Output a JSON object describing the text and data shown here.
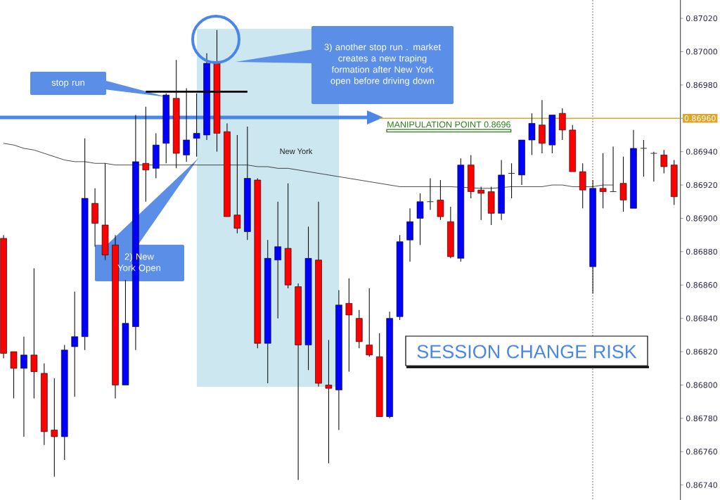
{
  "chart_data": {
    "type": "candlestick",
    "categories": [
      null,
      null,
      null,
      null,
      null,
      null,
      null,
      null,
      null,
      null,
      null,
      null,
      null,
      null,
      null,
      null,
      null,
      null,
      null,
      null,
      null,
      null,
      null,
      null,
      null,
      null,
      null,
      null,
      null,
      null,
      null,
      null,
      null,
      null,
      null,
      null,
      null,
      null,
      null,
      null,
      null,
      null,
      null,
      null,
      null,
      null,
      null,
      null,
      null,
      null,
      null,
      null,
      null,
      null,
      null,
      null,
      null,
      null,
      null,
      null,
      null,
      null,
      null,
      null,
      null,
      null,
      null
    ],
    "ohlc": [
      [
        0.86888,
        0.8689,
        0.86816,
        0.86819
      ],
      [
        0.8682,
        0.8682,
        0.86792,
        0.8681
      ],
      [
        0.8681,
        0.86829,
        0.86769,
        0.86818
      ],
      [
        0.86818,
        0.8687,
        0.86792,
        0.86808
      ],
      [
        0.86807,
        0.86813,
        0.86764,
        0.86772
      ],
      [
        0.86773,
        0.86804,
        0.86745,
        0.86769
      ],
      [
        0.86769,
        0.86824,
        0.86755,
        0.86821
      ],
      [
        0.86823,
        0.86856,
        0.86793,
        0.86829
      ],
      [
        0.86829,
        0.86948,
        0.86821,
        0.86912
      ],
      [
        0.86909,
        0.86918,
        0.86883,
        0.86897
      ],
      [
        0.86896,
        0.86933,
        0.86875,
        0.86878
      ],
      [
        0.86884,
        0.8689,
        0.86792,
        0.868
      ],
      [
        0.868,
        0.86863,
        0.868,
        0.86837
      ],
      [
        0.86835,
        0.86962,
        0.86821,
        0.86934
      ],
      [
        0.86933,
        0.86967,
        0.8691,
        0.86929
      ],
      [
        0.8693,
        0.86951,
        0.86924,
        0.86944
      ],
      [
        0.86945,
        0.86975,
        0.86933,
        0.86974
      ],
      [
        0.86972,
        0.86995,
        0.8693,
        0.86939
      ],
      [
        0.86938,
        0.86978,
        0.86934,
        0.86947
      ],
      [
        0.86948,
        0.86975,
        0.86937,
        0.86951
      ],
      [
        0.8695,
        0.86999,
        0.86947,
        0.86993
      ],
      [
        0.86993,
        0.87013,
        0.8694,
        0.86951
      ],
      [
        0.86952,
        0.86957,
        0.86901,
        0.86901
      ],
      [
        0.86902,
        0.8695,
        0.86891,
        0.86894
      ],
      [
        0.86892,
        0.86955,
        0.86887,
        0.86924
      ],
      [
        0.86923,
        0.86924,
        0.86822,
        0.86825
      ],
      [
        0.86825,
        0.86887,
        0.86801,
        0.86876
      ],
      [
        0.86875,
        0.8691,
        0.8684,
        0.86883
      ],
      [
        0.86882,
        0.86921,
        0.86858,
        0.8686
      ],
      [
        0.86859,
        0.86861,
        0.86743,
        0.86824
      ],
      [
        0.86824,
        0.86895,
        0.86809,
        0.86876
      ],
      [
        0.86875,
        0.8691,
        0.86799,
        0.86801
      ],
      [
        0.868,
        0.86827,
        0.86753,
        0.86798
      ],
      [
        0.86797,
        0.86857,
        0.86773,
        0.86848
      ],
      [
        0.86849,
        0.86864,
        0.86808,
        0.86842
      ],
      [
        0.8684,
        0.86845,
        0.86822,
        0.86826
      ],
      [
        0.86824,
        0.86858,
        0.86817,
        0.86818
      ],
      [
        0.86817,
        0.86831,
        0.86781,
        0.86781
      ],
      [
        0.86781,
        0.86844,
        0.8678,
        0.8684
      ],
      [
        0.86841,
        0.8689,
        0.86839,
        0.86886
      ],
      [
        0.86887,
        0.86906,
        0.86874,
        0.86898
      ],
      [
        0.869,
        0.86915,
        0.86884,
        0.8691
      ],
      [
        0.8691,
        0.86924,
        0.86905,
        0.8691
      ],
      [
        0.86911,
        0.86923,
        0.86899,
        0.86901
      ],
      [
        0.86898,
        0.86907,
        0.86876,
        0.86877
      ],
      [
        0.86876,
        0.86936,
        0.86874,
        0.86932
      ],
      [
        0.86932,
        0.86938,
        0.86912,
        0.86916
      ],
      [
        0.86917,
        0.86919,
        0.86899,
        0.86915
      ],
      [
        0.86916,
        0.86919,
        0.86896,
        0.86903
      ],
      [
        0.86903,
        0.86935,
        0.86899,
        0.86926
      ],
      [
        0.86927,
        0.86933,
        0.86912,
        0.86927
      ],
      [
        0.86926,
        0.86947,
        0.8692,
        0.86947
      ],
      [
        0.86947,
        0.86963,
        0.86938,
        0.86957
      ],
      [
        0.86956,
        0.86971,
        0.86939,
        0.86945
      ],
      [
        0.86944,
        0.86962,
        0.86939,
        0.86962
      ],
      [
        0.86963,
        0.86966,
        0.86947,
        0.86953
      ],
      [
        0.86953,
        0.86956,
        0.86928,
        0.86928
      ],
      [
        0.86928,
        0.86933,
        0.86906,
        0.86917
      ],
      [
        0.86871,
        0.86923,
        0.86855,
        0.86918
      ],
      [
        0.86918,
        0.86939,
        0.86906,
        0.86916
      ],
      [
        0.86916,
        0.86943,
        0.86916,
        0.86916
      ],
      [
        0.86921,
        0.86937,
        0.86904,
        0.86911
      ],
      [
        0.86906,
        0.86953,
        0.86906,
        0.86942
      ],
      [
        0.86942,
        0.86947,
        0.86925,
        0.86942
      ],
      [
        0.86939,
        0.8694,
        0.86922,
        0.86939
      ],
      [
        0.86938,
        0.86941,
        0.86927,
        0.86931
      ],
      [
        0.86932,
        0.86935,
        0.86908,
        0.86913
      ]
    ],
    "colors": [
      "#ff0000",
      "#ff0000",
      "#0000ff",
      "#ff0000",
      "#ff0000",
      "#ff0000",
      "#0000ff",
      "#0000ff",
      "#0000ff",
      "#ff0000",
      "#ff0000",
      "#ff0000",
      "#0000ff",
      "#0000ff",
      "#ff0000",
      "#0000ff",
      "#0000ff",
      "#ff0000",
      "#0000ff",
      "#0000ff",
      "#0000ff",
      "#ff0000",
      "#ff0000",
      "#ff0000",
      "#0000ff",
      "#ff0000",
      "#0000ff",
      "#0000ff",
      "#ff0000",
      "#ff0000",
      "#0000ff",
      "#ff0000",
      "#ff0000",
      "#0000ff",
      "#ff0000",
      "#ff0000",
      "#ff0000",
      "#ff0000",
      "#0000ff",
      "#0000ff",
      "#0000ff",
      "#0000ff",
      "#333333",
      "#ff0000",
      "#ff0000",
      "#0000ff",
      "#ff0000",
      "#ff0000",
      "#ff0000",
      "#0000ff",
      "#333333",
      "#0000ff",
      "#0000ff",
      "#ff0000",
      "#0000ff",
      "#ff0000",
      "#ff0000",
      "#ff0000",
      "#0000ff",
      "#ff0000",
      "#333333",
      "#ff0000",
      "#0000ff",
      "#333333",
      "#333333",
      "#ff0000",
      "#ff0000"
    ],
    "series": [
      {
        "type": "line",
        "color": "#000000",
        "values": [
          0.86945,
          0.86944,
          0.86942,
          0.86941,
          0.86939,
          0.86937,
          0.86935,
          0.86934,
          0.86934,
          0.86933,
          0.86933,
          0.86932,
          0.86932,
          null,
          null,
          null,
          0.86932,
          0.86932,
          0.86932,
          0.86932,
          0.86932,
          0.86932,
          null,
          0.86932,
          0.86932,
          0.86931,
          0.86931,
          0.8693,
          0.8693,
          0.86929,
          0.86928,
          0.86927,
          0.86926,
          0.86925,
          0.86924,
          0.86923,
          0.86922,
          0.86921,
          0.8692,
          0.86919,
          0.86919,
          0.86919,
          0.86919,
          0.86919,
          0.86919,
          null,
          null,
          0.86918,
          0.86918,
          null,
          0.86919,
          0.86919,
          0.86919,
          0.86919,
          0.8692,
          0.8692,
          0.86919,
          null,
          0.86919,
          0.8692,
          0.8692,
          null,
          null,
          null,
          null,
          null,
          null
        ]
      },
      {
        "type": "line",
        "color": "#000000",
        "values": [
          null,
          null,
          null,
          null,
          null,
          null,
          null,
          null,
          null,
          null,
          null,
          null,
          null,
          null,
          0.86976,
          0.86976,
          0.86976,
          0.86976,
          0.86976,
          0.86976,
          0.86976,
          0.86976,
          0.86976,
          0.86976,
          0.86976,
          null,
          null,
          null,
          null,
          null,
          null,
          null,
          null,
          null,
          null,
          null,
          null,
          null,
          null,
          null,
          null,
          null,
          null,
          null,
          null,
          null,
          null,
          null,
          null,
          null,
          null,
          null,
          null,
          null,
          null,
          null,
          null,
          null,
          null,
          null,
          null,
          null,
          null,
          null,
          null,
          null,
          null
        ]
      }
    ],
    "ylim": [
      0.86731,
      0.87031
    ],
    "yticks": [
      {
        "value": 0.8674,
        "label": "0.86740"
      },
      {
        "value": 0.8676,
        "label": "0.86760"
      },
      {
        "value": 0.8678,
        "label": "0.86780"
      },
      {
        "value": 0.868,
        "label": "0.86800"
      },
      {
        "value": 0.8682,
        "label": "0.86820"
      },
      {
        "value": 0.8684,
        "label": "0.86840"
      },
      {
        "value": 0.8686,
        "label": "0.86860"
      },
      {
        "value": 0.8688,
        "label": "0.86880"
      },
      {
        "value": 0.869,
        "label": "0.86900"
      },
      {
        "value": 0.8692,
        "label": "0.86920"
      },
      {
        "value": 0.8694,
        "label": "0.86940"
      },
      {
        "value": 0.8696,
        "label": null
      },
      {
        "value": 0.8698,
        "label": "0.86980"
      },
      {
        "value": 0.87,
        "label": "0.87000"
      },
      {
        "value": 0.8702,
        "label": "0.87020"
      }
    ],
    "ref_lines": [
      {
        "axis": "y",
        "value": 0.8696,
        "label": "0.86960",
        "color": "#e0a526"
      }
    ],
    "tick_labels": "y",
    "annotations": [
      "stop run",
      "2) New York Open",
      "3) another stop run . market creates a new traping formation after New York open before driving down",
      "New York",
      "MANIPULATION POINT 0.8696",
      "SESSION CHANGE RISK"
    ]
  }
}
